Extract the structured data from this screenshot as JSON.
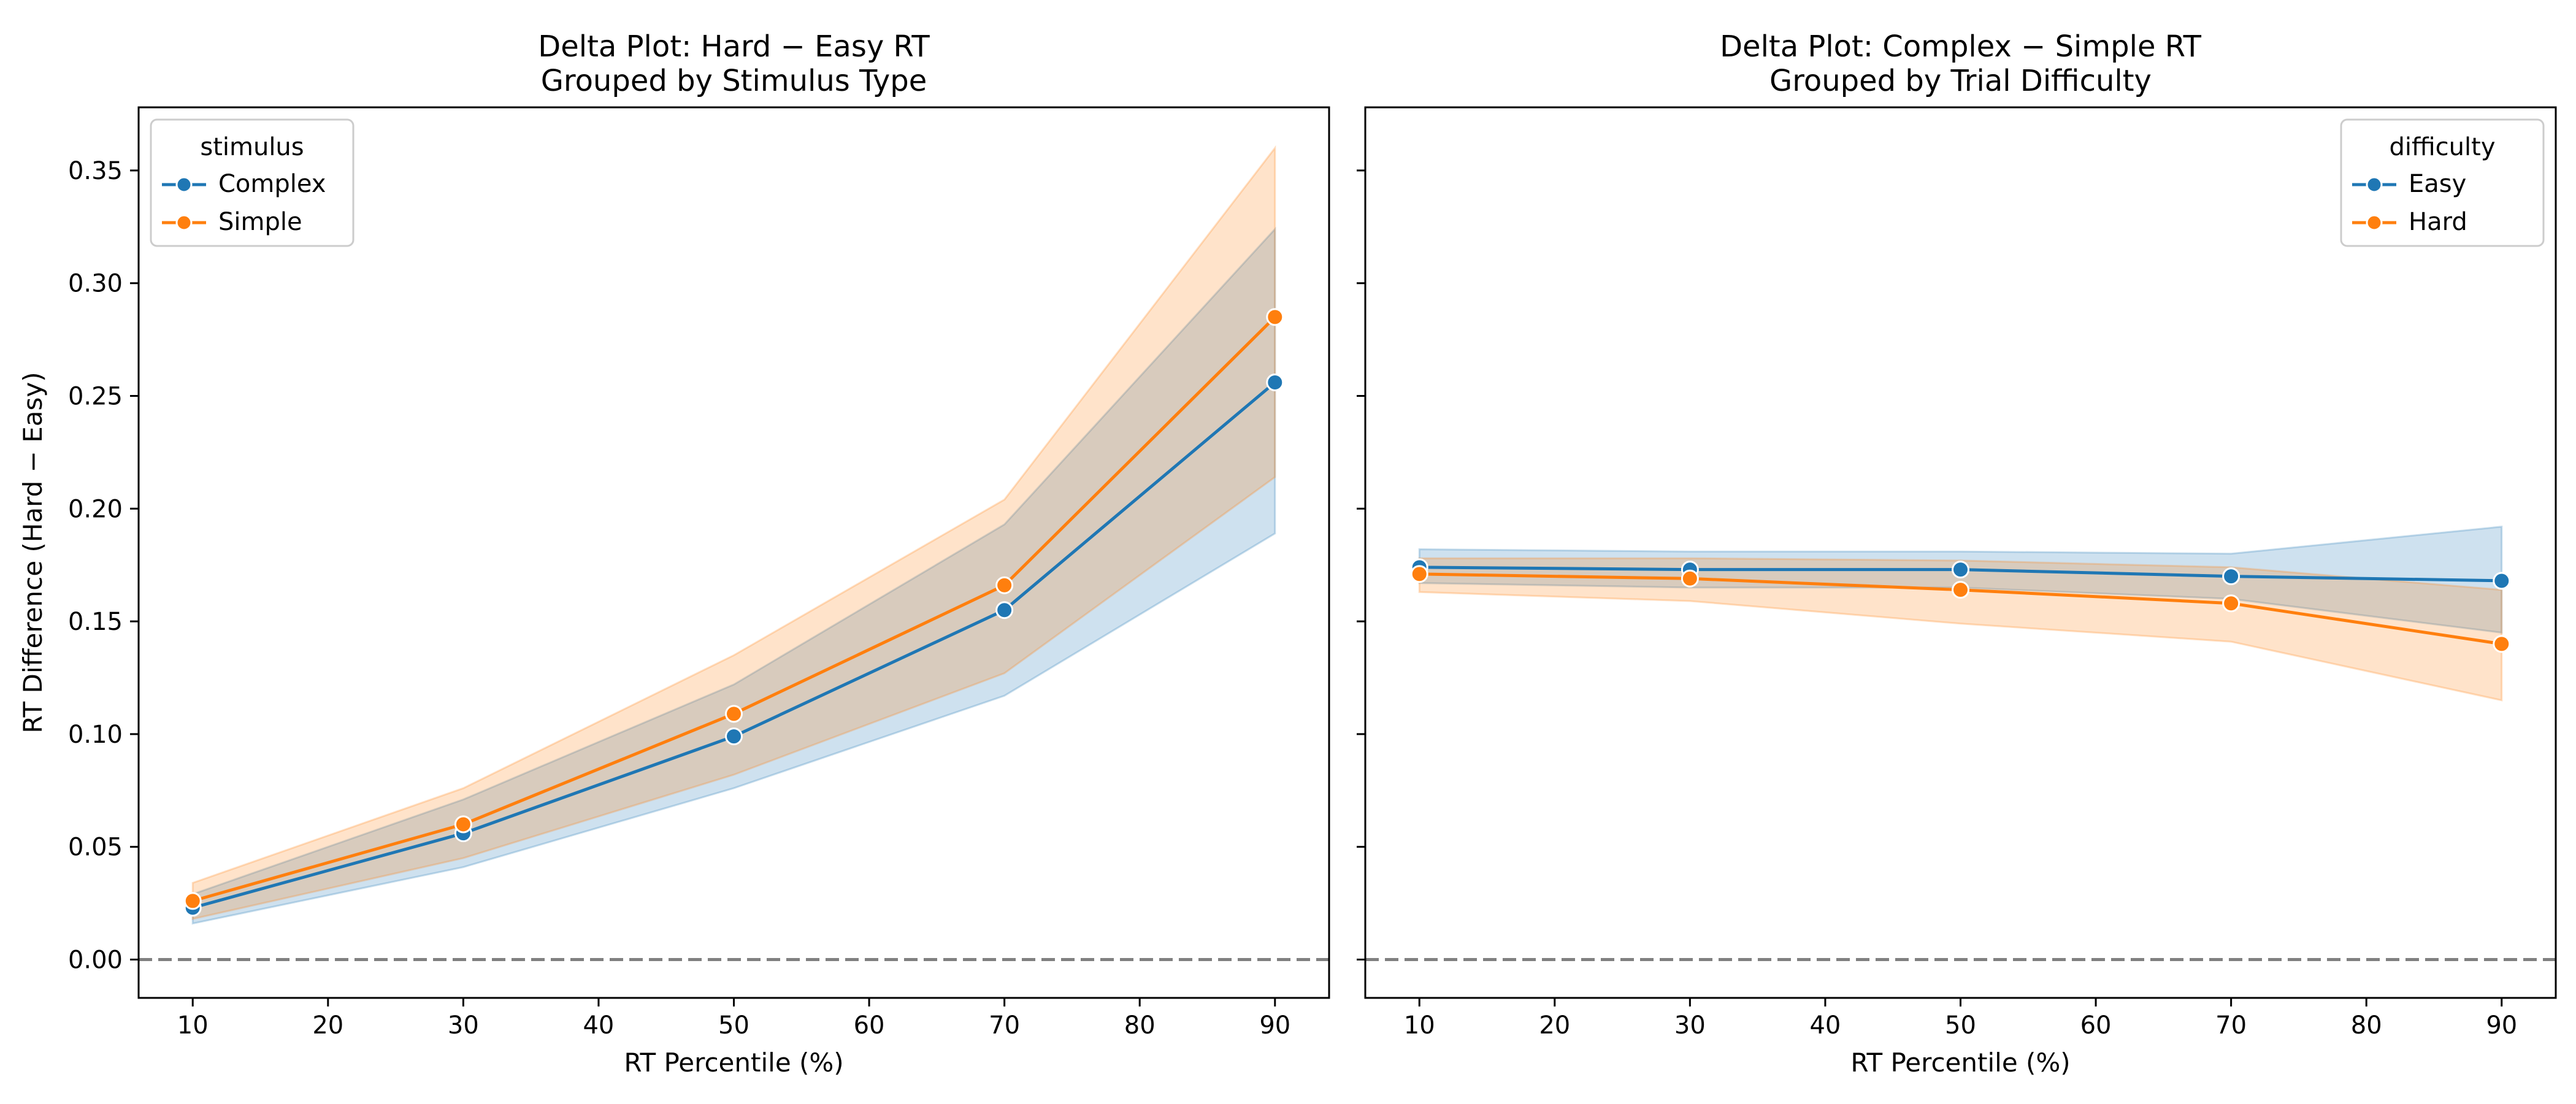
{
  "chart_data": [
    {
      "type": "line",
      "title": [
        "Delta Plot: Hard − Easy RT",
        "Grouped by Stimulus Type"
      ],
      "xlabel": "RT Percentile (%)",
      "ylabel": "RT Difference (Hard − Easy)",
      "xlim": [
        6,
        94
      ],
      "ylim": [
        -0.017,
        0.378
      ],
      "xticks": [
        10,
        20,
        30,
        40,
        50,
        60,
        70,
        80,
        90
      ],
      "yticks": [
        0.0,
        0.05,
        0.1,
        0.15,
        0.2,
        0.25,
        0.3,
        0.35
      ],
      "ytick_labels": [
        "0.00",
        "0.05",
        "0.10",
        "0.15",
        "0.20",
        "0.25",
        "0.30",
        "0.35"
      ],
      "reference_line": {
        "y": 0,
        "style": "dashed",
        "color": "#808080"
      },
      "legend": {
        "title": "stimulus",
        "loc": "upper left"
      },
      "x": [
        10,
        30,
        50,
        70,
        90
      ],
      "series": [
        {
          "name": "Complex",
          "color": "#1f77b4",
          "values": [
            0.023,
            0.056,
            0.099,
            0.155,
            0.256
          ],
          "ci_low": [
            0.016,
            0.041,
            0.076,
            0.117,
            0.189
          ],
          "ci_high": [
            0.029,
            0.071,
            0.122,
            0.193,
            0.324
          ]
        },
        {
          "name": "Simple",
          "color": "#ff7f0e",
          "values": [
            0.026,
            0.06,
            0.109,
            0.166,
            0.285
          ],
          "ci_low": [
            0.018,
            0.045,
            0.082,
            0.127,
            0.214
          ],
          "ci_high": [
            0.034,
            0.076,
            0.135,
            0.204,
            0.36
          ]
        }
      ]
    },
    {
      "type": "line",
      "title": [
        "Delta Plot: Complex − Simple RT",
        "Grouped by Trial Difficulty"
      ],
      "xlabel": "RT Percentile (%)",
      "ylabel": "",
      "xlim": [
        6,
        94
      ],
      "ylim": [
        -0.017,
        0.378
      ],
      "xticks": [
        10,
        20,
        30,
        40,
        50,
        60,
        70,
        80,
        90
      ],
      "yticks": [
        0.0,
        0.05,
        0.1,
        0.15,
        0.2,
        0.25,
        0.3,
        0.35
      ],
      "ytick_labels": [],
      "reference_line": {
        "y": 0,
        "style": "dashed",
        "color": "#808080"
      },
      "legend": {
        "title": "difficulty",
        "loc": "upper right"
      },
      "x": [
        10,
        30,
        50,
        70,
        90
      ],
      "series": [
        {
          "name": "Easy",
          "color": "#1f77b4",
          "values": [
            0.174,
            0.173,
            0.173,
            0.17,
            0.168
          ],
          "ci_low": [
            0.167,
            0.165,
            0.165,
            0.16,
            0.145
          ],
          "ci_high": [
            0.182,
            0.181,
            0.181,
            0.18,
            0.192
          ]
        },
        {
          "name": "Hard",
          "color": "#ff7f0e",
          "values": [
            0.171,
            0.169,
            0.164,
            0.158,
            0.14
          ],
          "ci_low": [
            0.163,
            0.159,
            0.149,
            0.141,
            0.115
          ],
          "ci_high": [
            0.178,
            0.178,
            0.177,
            0.174,
            0.164
          ]
        }
      ]
    }
  ]
}
